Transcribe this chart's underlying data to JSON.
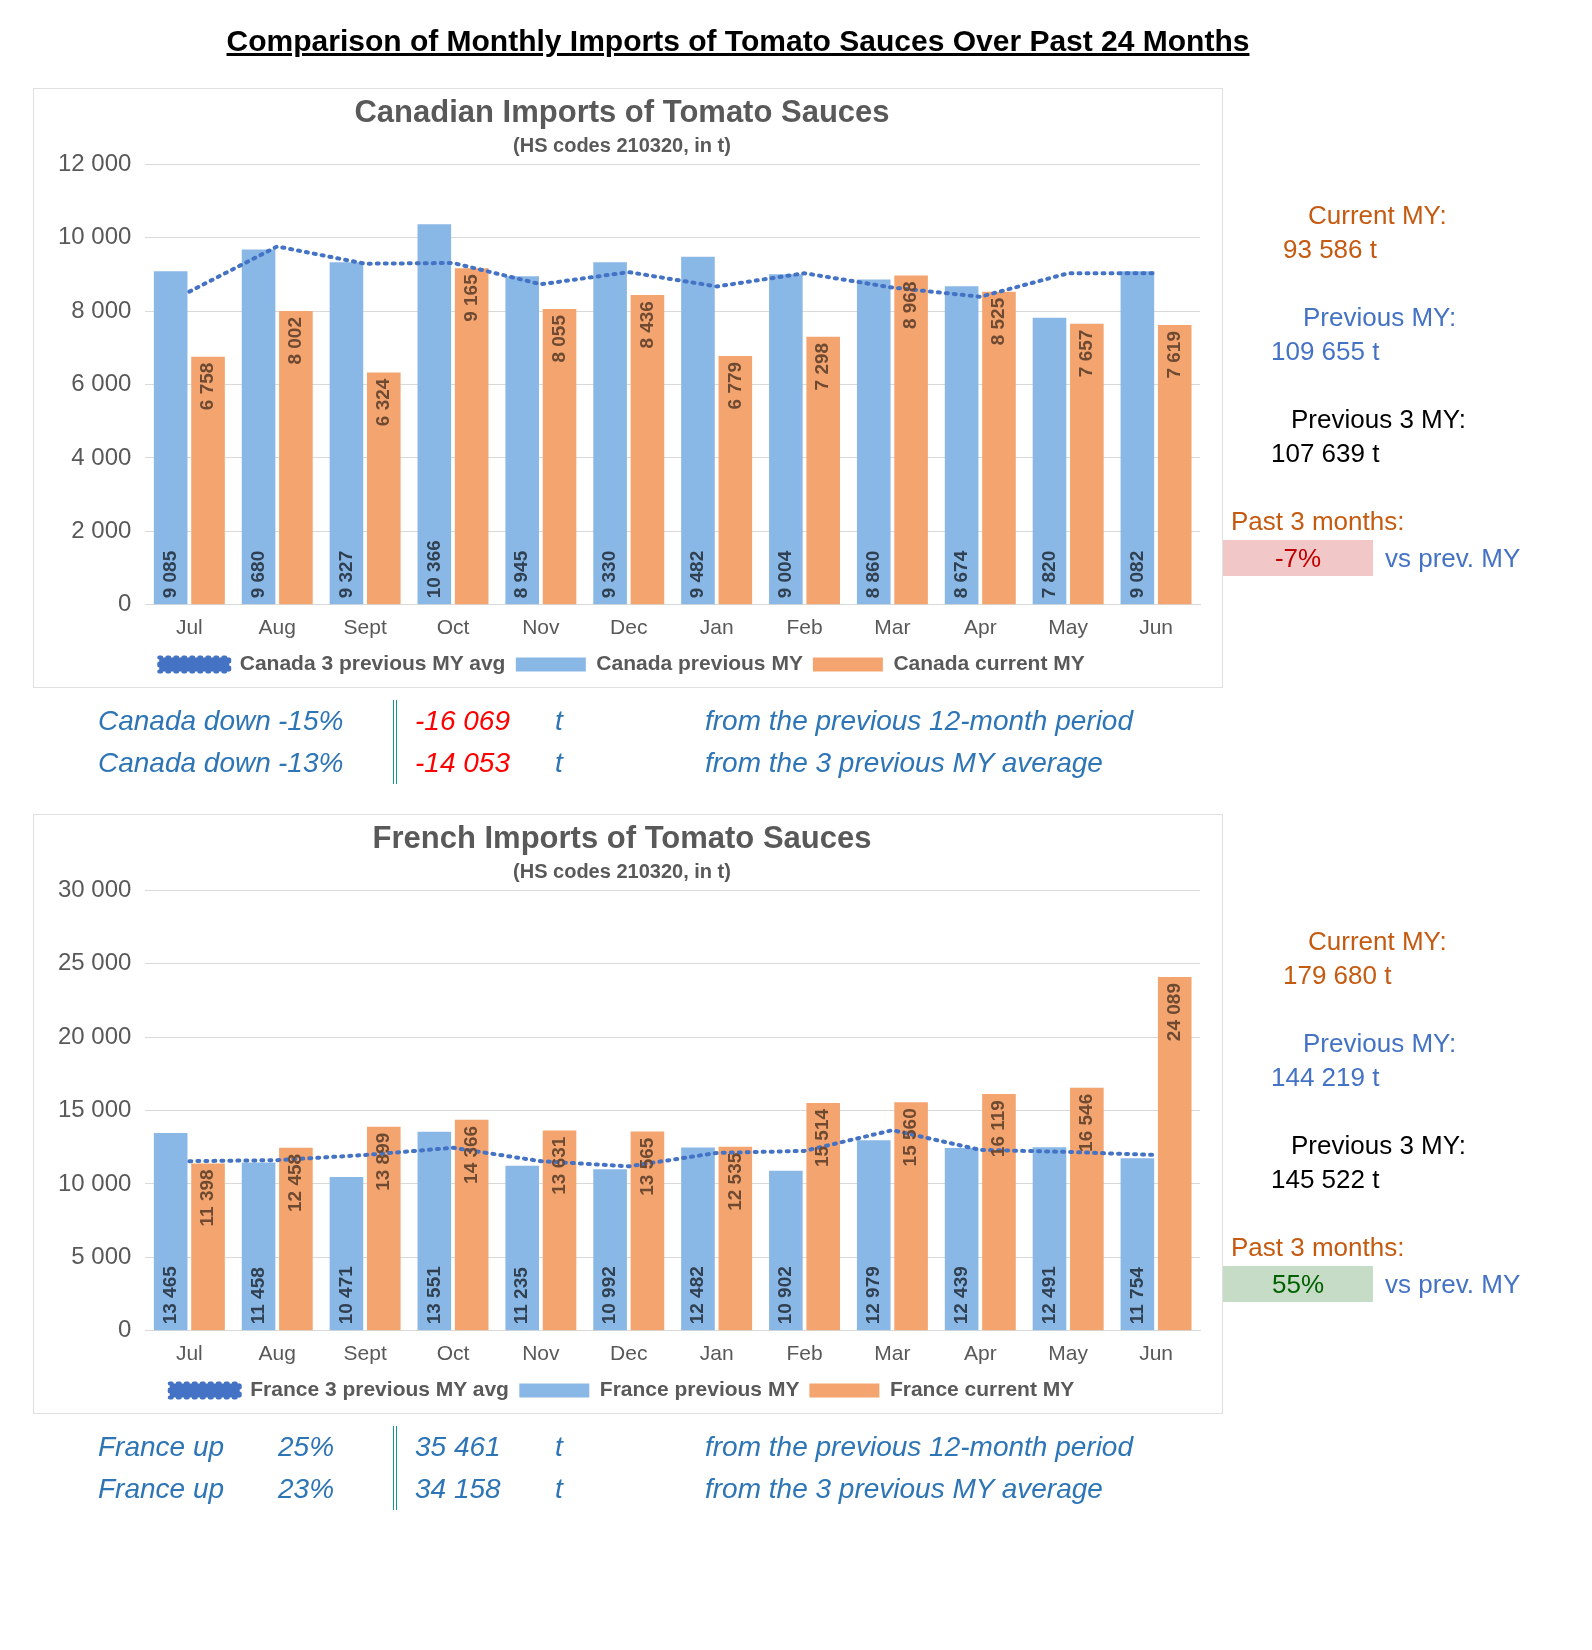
{
  "chart_data": [
    {
      "type": "other",
      "title": "Comparison of Monthly Imports of Tomato Sauces Over Past 24 Months"
    },
    {
      "type": "bar",
      "title": "Canadian Imports of Tomato Sauces",
      "subtitle": "(HS codes 210320, in t)",
      "categories": [
        "Jul",
        "Aug",
        "Sept",
        "Oct",
        "Nov",
        "Dec",
        "Jan",
        "Feb",
        "Mar",
        "Apr",
        "May",
        "Jun"
      ],
      "series": [
        {
          "name": "Canada previous MY",
          "type": "bar",
          "color": "#8ab8e6",
          "values": [
            9085,
            9680,
            9327,
            10366,
            8945,
            9330,
            9482,
            9004,
            8860,
            8674,
            7820,
            9082
          ],
          "value_labels": [
            "9 085",
            "9 680",
            "9 327",
            "10 366",
            "8 945",
            "9 330",
            "9 482",
            "9 004",
            "8 860",
            "8 674",
            "7 820",
            "9 082"
          ]
        },
        {
          "name": "Canada current MY",
          "type": "bar",
          "color": "#f4a56f",
          "values": [
            6758,
            8002,
            6324,
            9165,
            8055,
            8436,
            6779,
            7298,
            8968,
            8525,
            7657,
            7619
          ],
          "value_labels": [
            "6 758",
            "8 002",
            "6 324",
            "9 165",
            "8 055",
            "8 436",
            "6 779",
            "7 298",
            "8 968",
            "8 525",
            "7 657",
            "7 619"
          ]
        },
        {
          "name": "Canada 3 previous MY avg",
          "type": "line",
          "color": "#4472c4",
          "line_style": "dotted",
          "marker": "none",
          "values": [
            8530,
            9760,
            9290,
            9310,
            8730,
            9060,
            8670,
            9030,
            8640,
            8390,
            9030,
            9030
          ]
        }
      ],
      "ylim": [
        0,
        12000
      ],
      "yticks": [
        {
          "value": 0,
          "label": "0"
        },
        {
          "value": 2000,
          "label": "2 000"
        },
        {
          "value": 4000,
          "label": "4 000"
        },
        {
          "value": 6000,
          "label": "6 000"
        },
        {
          "value": 8000,
          "label": "8 000"
        },
        {
          "value": 10000,
          "label": "10 000"
        },
        {
          "value": 12000,
          "label": "12 000"
        }
      ],
      "grid": "y",
      "legend": "bottom"
    },
    {
      "type": "other",
      "annotations": [
        "Current MY:",
        "93 586 t",
        "Previous MY:",
        "109 655 t",
        "Previous 3 MY:",
        "107 639 t",
        "Past 3 months:",
        "-7%",
        "vs prev. MY"
      ],
      "colors": [
        "#c55a11",
        "#c55a11",
        "#4472c4",
        "#4472c4",
        "#000000",
        "#000000",
        "#c55a11",
        "#c00000",
        "#4472c4"
      ]
    },
    {
      "type": "other",
      "annotations": [
        "Canada down",
        "-15%",
        "-16 069",
        "t",
        "from the previous 12-month period",
        "Canada down",
        "-13%",
        "-14 053",
        "t",
        "from the 3 previous MY average"
      ],
      "colors": [
        "#2e75b6",
        "#2e75b6",
        "#ff0000",
        "#2e75b6",
        "#2e75b6",
        "#2e75b6",
        "#2e75b6",
        "#ff0000",
        "#2e75b6",
        "#2e75b6"
      ]
    },
    {
      "type": "bar",
      "title": "French Imports of Tomato Sauces",
      "subtitle": "(HS codes 210320, in t)",
      "categories": [
        "Jul",
        "Aug",
        "Sept",
        "Oct",
        "Nov",
        "Dec",
        "Jan",
        "Feb",
        "Mar",
        "Apr",
        "May",
        "Jun"
      ],
      "series": [
        {
          "name": "France previous MY",
          "type": "bar",
          "color": "#8ab8e6",
          "values": [
            13465,
            11458,
            10471,
            13551,
            11235,
            10992,
            12482,
            10902,
            12979,
            12439,
            12491,
            11754
          ],
          "value_labels": [
            "13 465",
            "11 458",
            "10 471",
            "13 551",
            "11 235",
            "10 992",
            "12 482",
            "10 902",
            "12 979",
            "12 439",
            "12 491",
            "11 754"
          ]
        },
        {
          "name": "France current MY",
          "type": "bar",
          "color": "#f4a56f",
          "values": [
            11398,
            12458,
            13899,
            14366,
            13631,
            13565,
            12535,
            15514,
            15560,
            16119,
            16546,
            24089
          ],
          "value_labels": [
            "11 398",
            "12 458",
            "13 899",
            "14 366",
            "13 631",
            "13 565",
            "12 535",
            "15 514",
            "15 560",
            "16 119",
            "16 546",
            "24 089"
          ]
        },
        {
          "name": "France 3 previous MY avg",
          "type": "line",
          "color": "#4472c4",
          "line_style": "dotted",
          "marker": "none",
          "values": [
            11550,
            11620,
            11970,
            12460,
            11550,
            11200,
            12110,
            12250,
            13660,
            12320,
            12180,
            11970
          ]
        }
      ],
      "ylim": [
        0,
        30000
      ],
      "yticks": [
        {
          "value": 0,
          "label": "0"
        },
        {
          "value": 5000,
          "label": "5 000"
        },
        {
          "value": 10000,
          "label": "10 000"
        },
        {
          "value": 15000,
          "label": "15 000"
        },
        {
          "value": 20000,
          "label": "20 000"
        },
        {
          "value": 25000,
          "label": "25 000"
        },
        {
          "value": 30000,
          "label": "30 000"
        }
      ],
      "grid": "y",
      "legend": "bottom"
    },
    {
      "type": "other",
      "annotations": [
        "Current MY:",
        "179 680 t",
        "Previous MY:",
        "144 219 t",
        "Previous 3 MY:",
        "145 522 t",
        "Past 3 months:",
        "55%",
        "vs prev. MY"
      ],
      "colors": [
        "#c55a11",
        "#c55a11",
        "#4472c4",
        "#4472c4",
        "#000000",
        "#000000",
        "#c55a11",
        "#006100",
        "#4472c4"
      ]
    },
    {
      "type": "other",
      "annotations": [
        "France up",
        "25%",
        "35 461",
        "t",
        "from the previous 12-month period",
        "France up",
        "23%",
        "34 158",
        "t",
        "from the 3 previous MY average"
      ],
      "colors": [
        "#2e75b6",
        "#2e75b6",
        "#2e75b6",
        "#2e75b6",
        "#2e75b6",
        "#2e75b6",
        "#2e75b6",
        "#2e75b6",
        "#2e75b6",
        "#2e75b6"
      ]
    }
  ]
}
